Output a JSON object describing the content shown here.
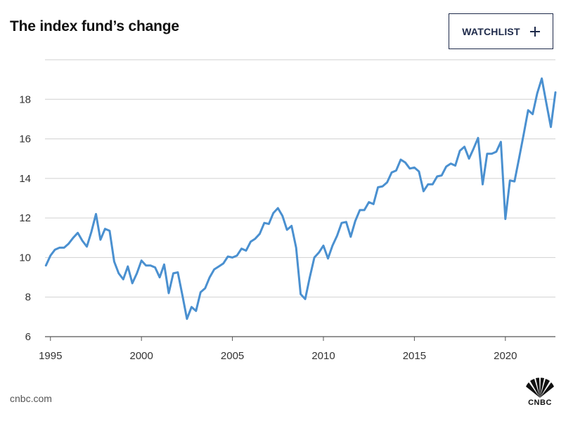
{
  "header": {
    "title": "The index fund’s change",
    "watchlist_label": "WATCHLIST"
  },
  "footer": {
    "source": "cnbc.com",
    "logo_text": "CNBC"
  },
  "colors": {
    "line": "#4a90d0",
    "grid": "#d0d0d0",
    "button_border": "#1e2a4a"
  },
  "chart_data": {
    "type": "line",
    "title": "The index fund’s change",
    "xlabel": "",
    "ylabel": "",
    "xlim": [
      1994.7,
      2022.75
    ],
    "ylim": [
      6,
      20
    ],
    "x_ticks": [
      1995,
      2000,
      2005,
      2010,
      2015,
      2020
    ],
    "x_tick_labels": [
      "1995",
      "2000",
      "2005",
      "2010",
      "2015",
      "2020"
    ],
    "y_ticks": [
      6,
      8,
      10,
      12,
      14,
      16,
      18
    ],
    "y_tick_labels": [
      "6",
      "8",
      "10",
      "12",
      "14",
      "16",
      "18"
    ],
    "grid": "horizontal",
    "series": [
      {
        "x": [
          1994.75,
          1995.0,
          1995.25,
          1995.5,
          1995.75,
          1996.0,
          1996.25,
          1996.5,
          1996.75,
          1997.0,
          1997.25,
          1997.5,
          1997.75,
          1998.0,
          1998.25,
          1998.5,
          1998.75,
          1999.0,
          1999.25,
          1999.5,
          1999.75,
          2000.0,
          2000.25,
          2000.5,
          2000.75,
          2001.0,
          2001.25,
          2001.5,
          2001.75,
          2002.0,
          2002.25,
          2002.5,
          2002.75,
          2003.0,
          2003.25,
          2003.5,
          2003.75,
          2004.0,
          2004.25,
          2004.5,
          2004.75,
          2005.0,
          2005.25,
          2005.5,
          2005.75,
          2006.0,
          2006.25,
          2006.5,
          2006.75,
          2007.0,
          2007.25,
          2007.5,
          2007.75,
          2008.0,
          2008.25,
          2008.5,
          2008.75,
          2009.0,
          2009.25,
          2009.5,
          2009.75,
          2010.0,
          2010.25,
          2010.5,
          2010.75,
          2011.0,
          2011.25,
          2011.5,
          2011.75,
          2012.0,
          2012.25,
          2012.5,
          2012.75,
          2013.0,
          2013.25,
          2013.5,
          2013.75,
          2014.0,
          2014.25,
          2014.5,
          2014.75,
          2015.0,
          2015.25,
          2015.5,
          2015.75,
          2016.0,
          2016.25,
          2016.5,
          2016.75,
          2017.0,
          2017.25,
          2017.5,
          2017.75,
          2018.0,
          2018.25,
          2018.5,
          2018.75,
          2019.0,
          2019.25,
          2019.5,
          2019.75,
          2020.0,
          2020.25,
          2020.5,
          2020.75,
          2021.0,
          2021.25,
          2021.5,
          2021.75,
          2022.0,
          2022.25,
          2022.5,
          2022.75
        ],
        "y": [
          9.6,
          10.1,
          10.4,
          10.5,
          10.5,
          10.7,
          11.0,
          11.25,
          10.85,
          10.55,
          11.3,
          12.2,
          10.9,
          11.45,
          11.35,
          9.8,
          9.2,
          8.9,
          9.55,
          8.7,
          9.2,
          9.85,
          9.6,
          9.6,
          9.5,
          9.0,
          9.65,
          8.2,
          9.2,
          9.25,
          8.1,
          6.9,
          7.5,
          7.3,
          8.25,
          8.45,
          9.0,
          9.4,
          9.55,
          9.7,
          10.05,
          10.0,
          10.1,
          10.45,
          10.35,
          10.8,
          10.95,
          11.2,
          11.75,
          11.7,
          12.25,
          12.5,
          12.1,
          11.4,
          11.6,
          10.5,
          8.15,
          7.9,
          9.0,
          10.0,
          10.25,
          10.6,
          9.95,
          10.6,
          11.1,
          11.75,
          11.8,
          11.05,
          11.85,
          12.4,
          12.4,
          12.8,
          12.7,
          13.55,
          13.6,
          13.8,
          14.3,
          14.4,
          14.95,
          14.8,
          14.5,
          14.55,
          14.35,
          13.35,
          13.7,
          13.7,
          14.1,
          14.15,
          14.6,
          14.75,
          14.65,
          15.4,
          15.6,
          15.0,
          15.5,
          16.05,
          13.7,
          15.25,
          15.25,
          15.35,
          15.85,
          11.95,
          13.9,
          13.85,
          15.0,
          16.2,
          17.45,
          17.25,
          18.3,
          19.05,
          17.8,
          16.6,
          18.35
        ]
      }
    ]
  }
}
